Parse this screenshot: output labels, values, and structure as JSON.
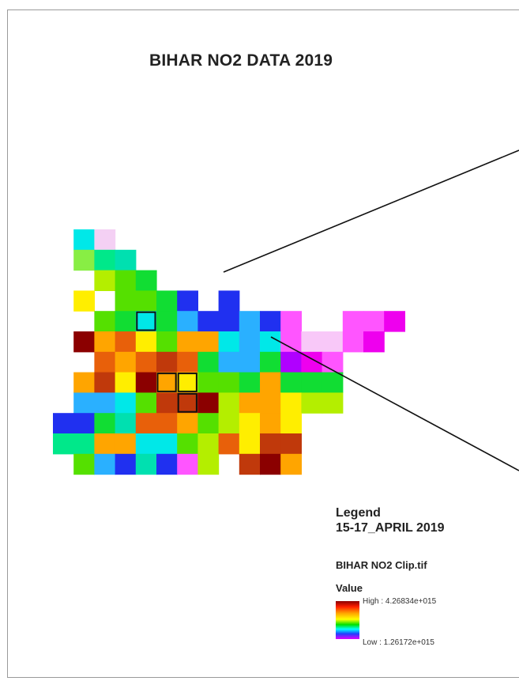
{
  "map": {
    "title": "BIHAR NO2 DATA 2019",
    "raster_grid": {
      "rows": [
        [
          "",
          "cyan",
          "lightpink",
          "",
          "",
          "",
          "",
          "",
          "",
          "",
          "",
          "",
          "",
          "",
          "",
          "",
          "",
          "",
          ""
        ],
        [
          "",
          "lightgreen",
          "spring",
          "turq",
          "",
          "",
          "",
          "",
          "",
          "",
          "",
          "",
          "",
          "",
          "",
          "",
          "",
          "",
          ""
        ],
        [
          "",
          "",
          "yellowgreen",
          "lime",
          "green",
          "",
          "",
          "",
          "",
          "",
          "",
          "",
          "",
          "",
          "",
          "",
          "",
          "",
          ""
        ],
        [
          "",
          "yellow",
          "",
          "lime",
          "lime",
          "green",
          "blue",
          "",
          "blue",
          "",
          "",
          "",
          "",
          "",
          "",
          "",
          "",
          "",
          ""
        ],
        [
          "",
          "",
          "lime",
          "green",
          "cyan",
          "green",
          "sky",
          "blue",
          "blue",
          "sky",
          "blue",
          "violet",
          "",
          "",
          "violet",
          "violet",
          "magenta",
          "",
          ""
        ],
        [
          "",
          "darkred",
          "orange",
          "darkorange",
          "yellow",
          "lime",
          "orange",
          "orange",
          "cyan",
          "sky",
          "cyan",
          "violet",
          "pink",
          "pink",
          "violet",
          "magenta",
          "",
          "",
          ""
        ],
        [
          "",
          "",
          "darkorange",
          "orange",
          "darkorange",
          "brown",
          "darkorange",
          "green",
          "sky",
          "sky",
          "green",
          "purple",
          "magenta",
          "violet",
          "",
          "",
          "",
          "",
          ""
        ],
        [
          "",
          "orange",
          "brown",
          "yellow",
          "darkred",
          "orange",
          "yellow",
          "lime",
          "lime",
          "green",
          "orange",
          "green",
          "green",
          "green",
          "",
          "",
          "",
          "",
          ""
        ],
        [
          "",
          "sky",
          "sky",
          "cyan",
          "lime",
          "brown",
          "brown",
          "darkred",
          "yellowgreen",
          "orange",
          "orange",
          "yellow",
          "yellowgreen",
          "yellowgreen",
          "",
          "",
          "",
          "",
          ""
        ],
        [
          "blue",
          "blue",
          "green",
          "turq",
          "darkorange",
          "darkorange",
          "orange",
          "lime",
          "yellowgreen",
          "yellow",
          "orange",
          "yellow",
          "",
          "",
          "",
          "",
          "",
          "",
          ""
        ],
        [
          "spring",
          "spring",
          "orange",
          "orange",
          "cyan",
          "cyan",
          "lime",
          "yellowgreen",
          "darkorange",
          "yellow",
          "brown",
          "brown",
          "",
          "",
          "",
          "",
          "",
          "",
          ""
        ],
        [
          "",
          "lime",
          "sky",
          "blue",
          "turq",
          "blue",
          "violet",
          "yellowgreen",
          "",
          "brown",
          "darkred",
          "orange",
          "",
          "",
          "",
          "",
          "",
          "",
          ""
        ]
      ],
      "highlighted_cells": [
        [
          4,
          4
        ],
        [
          7,
          5
        ],
        [
          7,
          6
        ],
        [
          8,
          6
        ]
      ]
    },
    "colors": {
      "darkred": "#8b0000",
      "brown": "#c0390b",
      "darkorange": "#e8600a",
      "orange": "#ffa500",
      "yellow": "#ffee00",
      "yellowgreen": "#b4ee00",
      "lime": "#55e000",
      "green": "#11dd33",
      "spring": "#00e88a",
      "turq": "#00e0b0",
      "cyan": "#00e8e8",
      "sky": "#2ab0ff",
      "blue": "#2030f0",
      "violet": "#ff55ff",
      "magenta": "#ee00ee",
      "purple": "#b000ff",
      "pink": "#f8c8f8",
      "lightpink": "#f4d0f4",
      "lightgreen": "#88ee44",
      "border": "#111111"
    }
  },
  "legend": {
    "heading": "Legend",
    "period": "15-17_APRIL 2019",
    "layer": "BIHAR NO2 Clip.tif",
    "field": "Value",
    "high_label": "High : 4.26834e+015",
    "low_label": "Low : 1.26172e+015",
    "high_value": 4268340000000000.0,
    "low_value": 1261720000000000.0
  }
}
